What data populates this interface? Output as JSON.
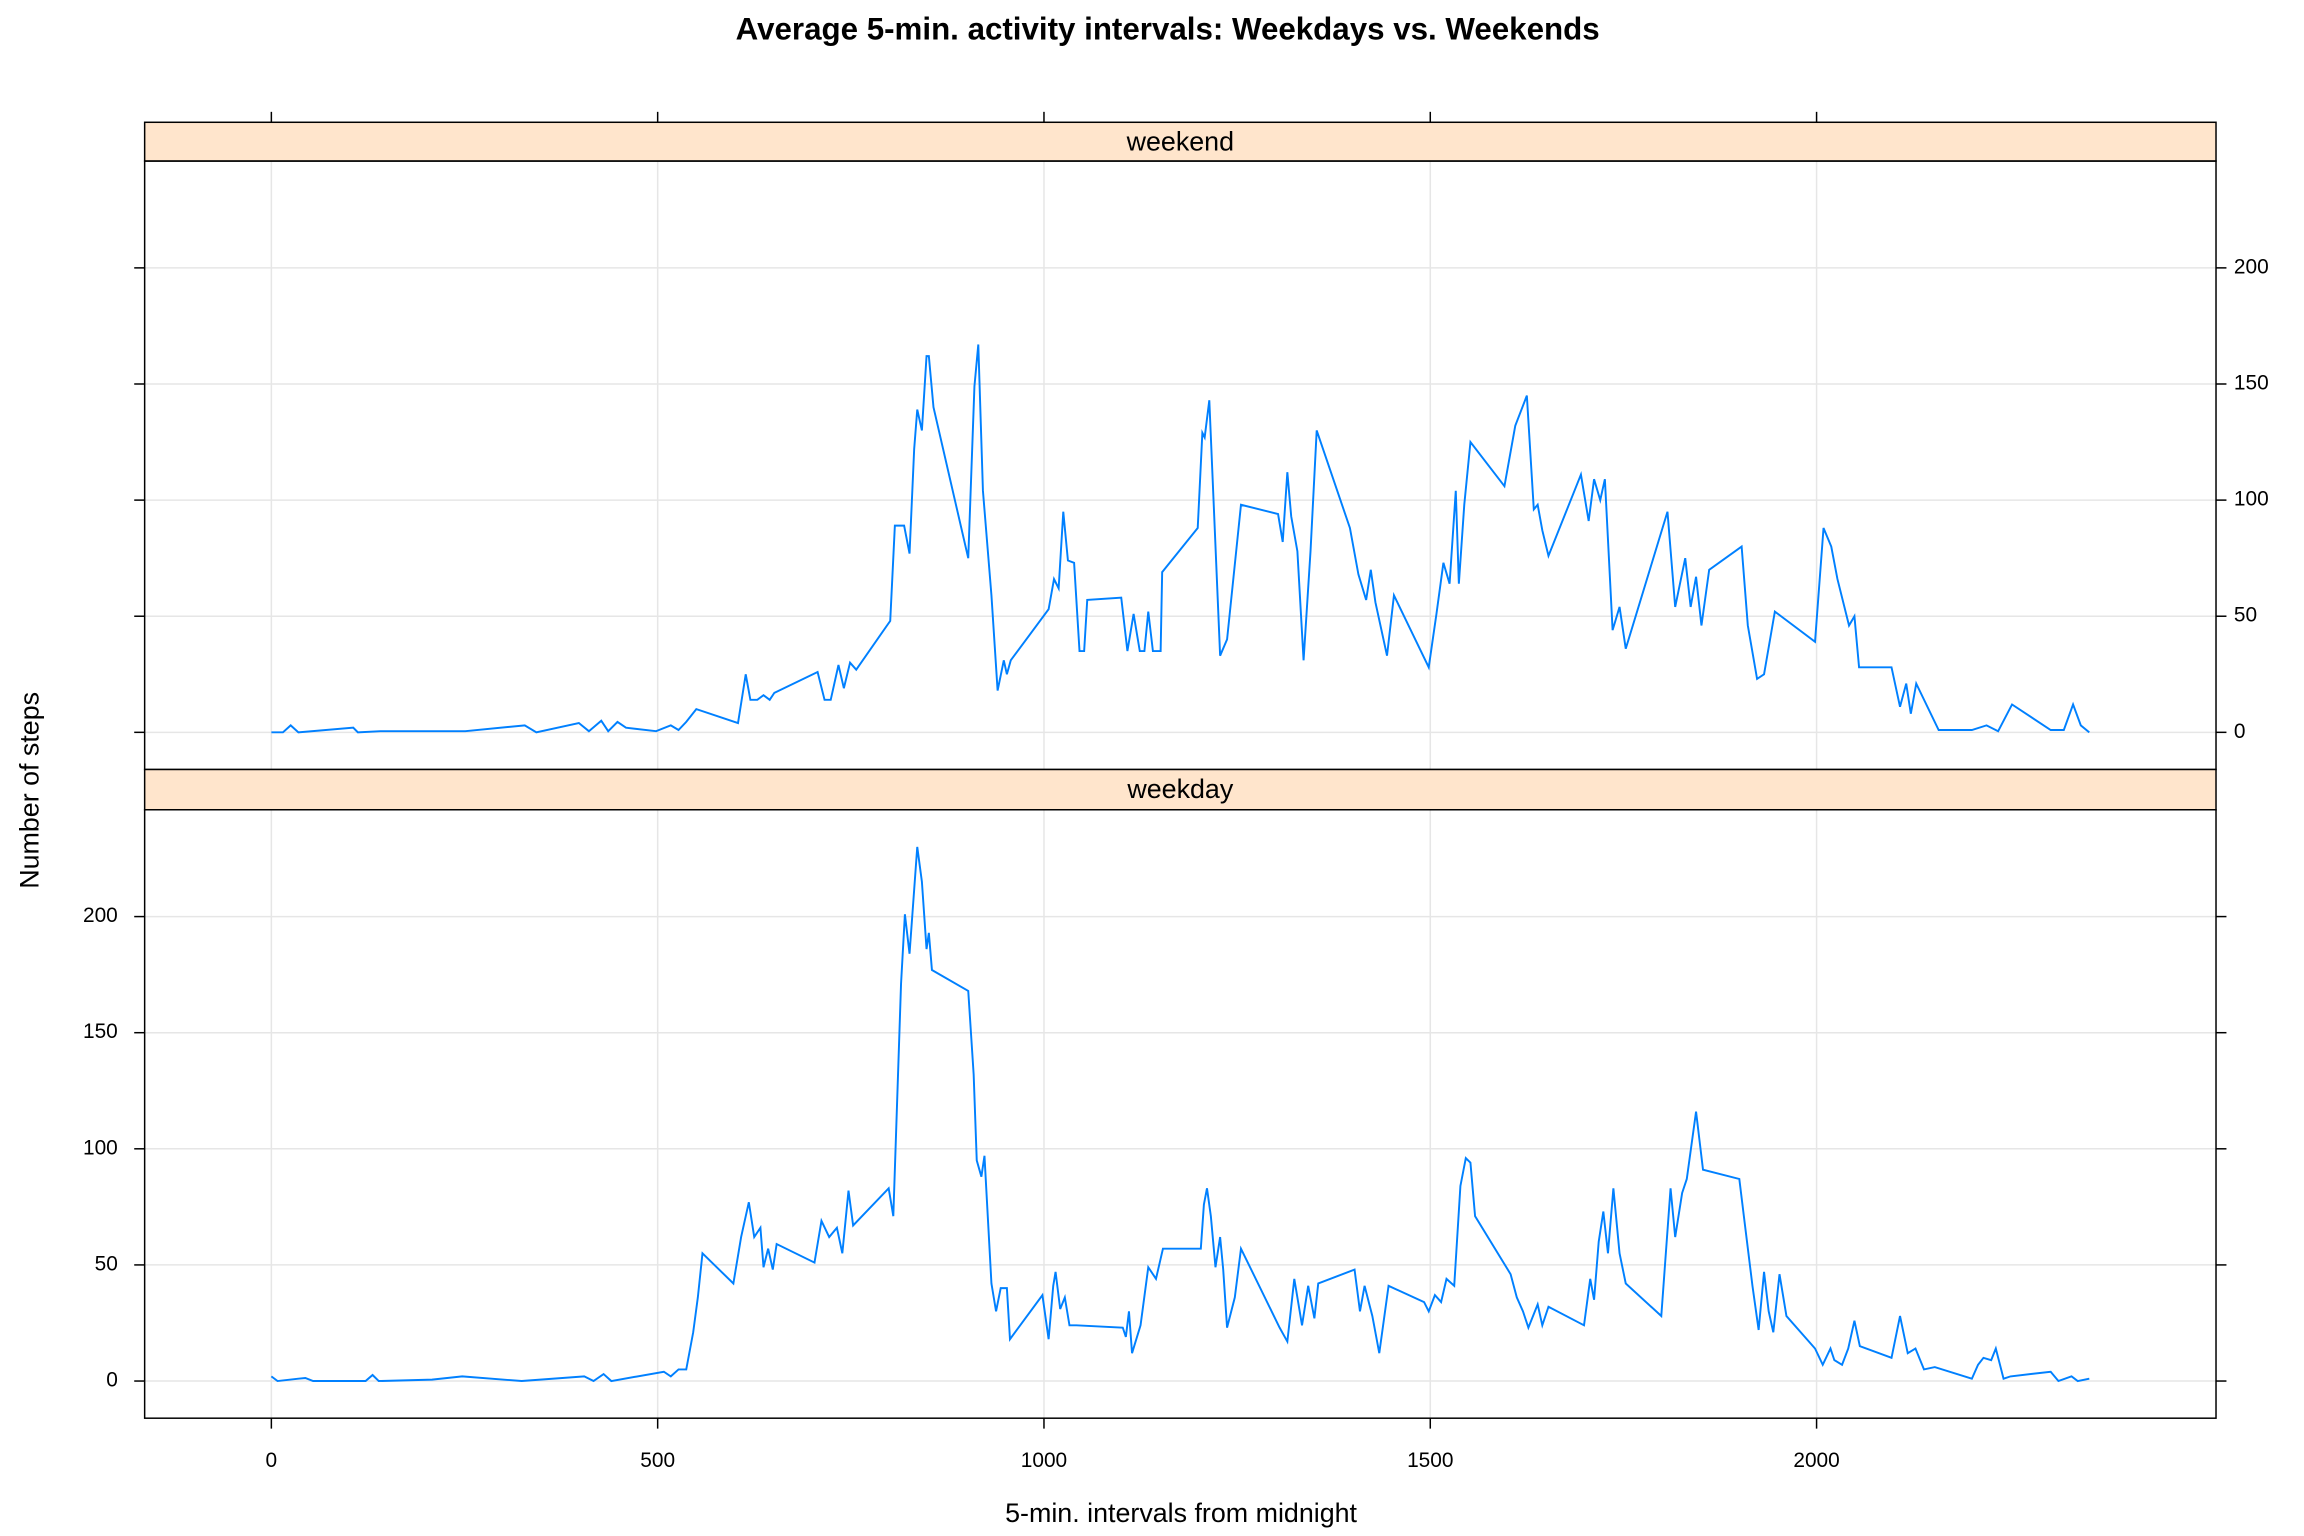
{
  "chart_data": {
    "type": "line",
    "title": "Average  5-min. activity intervals: Weekdays vs. Weekends",
    "xlabel": "5-min. intervals from midnight",
    "ylabel": "Number of steps",
    "xlim": [
      -164,
      2517
    ],
    "ylim": [
      -16,
      246
    ],
    "xticks": [
      0,
      500,
      1000,
      1500,
      2000
    ],
    "yticks": [
      0,
      50,
      100,
      150,
      200
    ],
    "grid": true,
    "series": [
      {
        "name": "weekend",
        "color": "#0080ff",
        "x": [
          0,
          15,
          25,
          35,
          106,
          112,
          141,
          251,
          328,
          343,
          398,
          411,
          427,
          436,
          448,
          459,
          498,
          517,
          527,
          537,
          550,
          604,
          614,
          620,
          629,
          637,
          645,
          651,
          707,
          716,
          724,
          734,
          741,
          749,
          757,
          801,
          807,
          819,
          826,
          832,
          836,
          842,
          848,
          851,
          857,
          902,
          910,
          915,
          921,
          932,
          940,
          948,
          952,
          957,
          1006,
          1013,
          1019,
          1025,
          1031,
          1039,
          1046,
          1052,
          1056,
          1100,
          1108,
          1116,
          1124,
          1130,
          1135,
          1141,
          1151,
          1153,
          1199,
          1205,
          1208,
          1214,
          1228,
          1237,
          1255,
          1303,
          1309,
          1315,
          1320,
          1328,
          1336,
          1345,
          1353,
          1396,
          1407,
          1417,
          1423,
          1429,
          1444,
          1453,
          1498,
          1508,
          1517,
          1525,
          1533,
          1537,
          1544,
          1552,
          1596,
          1610,
          1625,
          1634,
          1639,
          1645,
          1653,
          1695,
          1705,
          1712,
          1720,
          1726,
          1736,
          1745,
          1753,
          1807,
          1817,
          1830,
          1837,
          1844,
          1851,
          1861,
          1903,
          1911,
          1923,
          1932,
          1946,
          1998,
          2009,
          2019,
          2027,
          2042,
          2049,
          2055,
          2097,
          2108,
          2116,
          2122,
          2129,
          2158,
          2201,
          2220,
          2235,
          2253,
          2303,
          2320,
          2332,
          2342,
          2353
        ],
        "values": [
          0,
          0,
          3,
          0,
          2,
          0,
          0.5,
          0.5,
          3,
          0,
          4,
          0.5,
          5,
          0.5,
          4.5,
          2,
          0.5,
          3,
          1,
          4.5,
          10,
          4,
          25,
          14,
          14,
          16,
          14,
          17,
          26,
          14,
          14,
          29,
          19,
          30,
          27,
          48,
          89,
          89,
          77,
          122,
          139,
          130,
          162,
          162,
          140,
          75,
          149,
          167,
          104,
          59,
          18,
          31,
          25,
          31,
          53,
          66,
          62,
          95,
          74,
          73,
          35,
          35,
          57,
          58,
          35,
          51,
          35,
          35,
          52,
          35,
          35,
          69,
          88,
          129,
          127,
          143,
          33,
          40,
          98,
          94,
          82,
          112,
          93,
          78,
          31,
          78,
          130,
          88,
          68,
          57,
          70,
          56,
          33,
          59,
          28,
          51,
          73,
          64,
          104,
          64,
          98,
          125,
          106,
          132,
          145,
          96,
          98,
          87,
          76,
          111,
          91,
          109,
          100,
          109,
          44,
          54,
          36,
          95,
          54,
          75,
          54,
          67,
          46,
          70,
          80,
          46,
          23,
          25,
          52,
          39,
          88,
          80,
          66,
          46,
          50,
          28,
          28,
          11,
          21,
          8,
          21,
          1,
          1,
          3,
          0.5,
          12,
          1,
          1,
          12,
          3,
          0
        ]
      },
      {
        "name": "weekday",
        "color": "#0080ff",
        "x": [
          0,
          8,
          35,
          44,
          54,
          122,
          131,
          139,
          208,
          247,
          324,
          405,
          417,
          430,
          440,
          508,
          517,
          527,
          537,
          546,
          552,
          558,
          598,
          608,
          618,
          625,
          633,
          637,
          643,
          649,
          654,
          703,
          712,
          722,
          732,
          739,
          747,
          753,
          799,
          805,
          815,
          820,
          826,
          836,
          842,
          848,
          851,
          855,
          902,
          909,
          913,
          919,
          923,
          932,
          938,
          944,
          952,
          956,
          998,
          1006,
          1012,
          1015,
          1021,
          1027,
          1033,
          1042,
          1102,
          1106,
          1110,
          1114,
          1125,
          1135,
          1145,
          1154,
          1203,
          1207,
          1211,
          1216,
          1222,
          1228,
          1232,
          1237,
          1247,
          1255,
          1305,
          1315,
          1324,
          1334,
          1342,
          1350,
          1355,
          1402,
          1409,
          1415,
          1425,
          1434,
          1446,
          1492,
          1498,
          1506,
          1514,
          1521,
          1531,
          1539,
          1546,
          1552,
          1558,
          1604,
          1612,
          1620,
          1627,
          1639,
          1645,
          1653,
          1699,
          1707,
          1712,
          1718,
          1724,
          1730,
          1737,
          1745,
          1753,
          1799,
          1811,
          1817,
          1826,
          1832,
          1844,
          1853,
          1900,
          1907,
          1917,
          1925,
          1932,
          1938,
          1944,
          1952,
          1961,
          1998,
          2008,
          2018,
          2023,
          2033,
          2041,
          2049,
          2056,
          2097,
          2108,
          2118,
          2128,
          2139,
          2153,
          2201,
          2209,
          2216,
          2226,
          2232,
          2242,
          2251,
          2303,
          2313,
          2330,
          2338,
          2353
        ],
        "values": [
          2,
          0,
          1,
          1.3,
          0,
          0,
          2.6,
          0,
          0.6,
          2,
          0,
          2,
          0,
          3,
          0,
          4,
          2,
          5,
          5,
          21,
          36,
          55,
          42,
          62,
          77,
          62,
          66,
          49,
          57,
          48,
          59,
          51,
          69,
          62,
          66,
          55,
          82,
          67,
          83,
          71,
          171,
          201,
          184,
          230,
          215,
          186,
          193,
          177,
          168,
          132,
          95,
          88,
          97,
          42,
          30,
          40,
          40,
          18,
          37,
          18,
          41,
          47,
          31,
          36,
          24,
          24,
          23,
          19,
          30,
          12,
          24,
          49,
          44,
          57,
          57,
          76,
          83,
          71,
          49,
          62,
          48,
          23,
          36,
          57,
          23,
          17,
          44,
          24,
          41,
          27,
          42,
          48,
          30,
          41,
          28,
          12,
          41,
          34,
          30,
          37,
          34,
          44,
          41,
          84,
          96,
          94,
          71,
          46,
          36,
          30,
          23,
          33,
          24,
          32,
          24,
          44,
          35,
          60,
          73,
          55,
          83,
          55,
          42,
          28,
          83,
          62,
          81,
          87,
          116,
          91,
          87,
          68,
          41,
          22,
          47,
          30,
          21,
          46,
          28,
          14,
          7,
          14,
          9,
          7,
          14,
          26,
          15,
          10,
          28,
          12,
          14,
          5,
          6,
          1,
          7,
          10,
          9,
          14,
          1,
          2,
          4,
          0,
          2,
          0,
          1
        ]
      }
    ]
  }
}
